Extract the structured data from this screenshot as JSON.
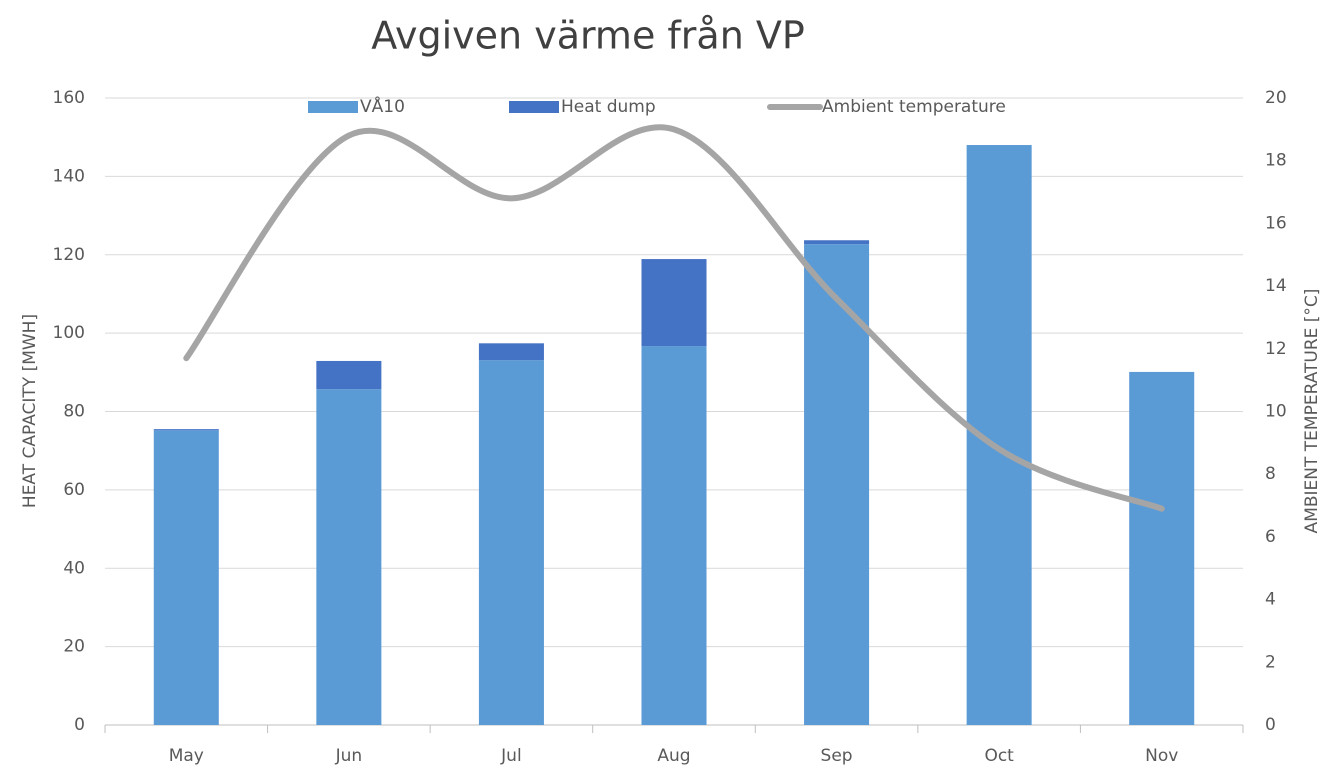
{
  "chart_data": {
    "type": "bar",
    "title": "Avgiven värme från VP",
    "categories": [
      "May",
      "Jun",
      "Jul",
      "Aug",
      "Sep",
      "Oct",
      "Nov"
    ],
    "series": [
      {
        "name": "VÅ10",
        "color": "#5b9bd5",
        "values": [
          75.2,
          85.7,
          93.1,
          96.7,
          122.7,
          148.0,
          90.1
        ]
      },
      {
        "name": "Heat dump",
        "color": "#4472c4",
        "values": [
          0.3,
          7.2,
          4.3,
          22.2,
          1.0,
          0,
          0
        ]
      },
      {
        "name": "Ambient temperature",
        "color": "#a5a5a5",
        "type": "line",
        "axis": "y2",
        "values": [
          11.7,
          18.8,
          16.8,
          19.0,
          13.6,
          8.8,
          6.9
        ]
      }
    ],
    "stacked": true,
    "ylabel": "HEAT CAPACITY [MWH]",
    "y2label": "AMBIENT TEMPERATURE [°C]",
    "ylim": [
      0,
      160
    ],
    "yticks": [
      0,
      20,
      40,
      60,
      80,
      100,
      120,
      140,
      160
    ],
    "y2lim": [
      0,
      20
    ],
    "y2ticks": [
      0,
      2,
      4,
      6,
      8,
      10,
      12,
      14,
      16,
      18,
      20
    ],
    "grid": true,
    "legend": "top"
  }
}
